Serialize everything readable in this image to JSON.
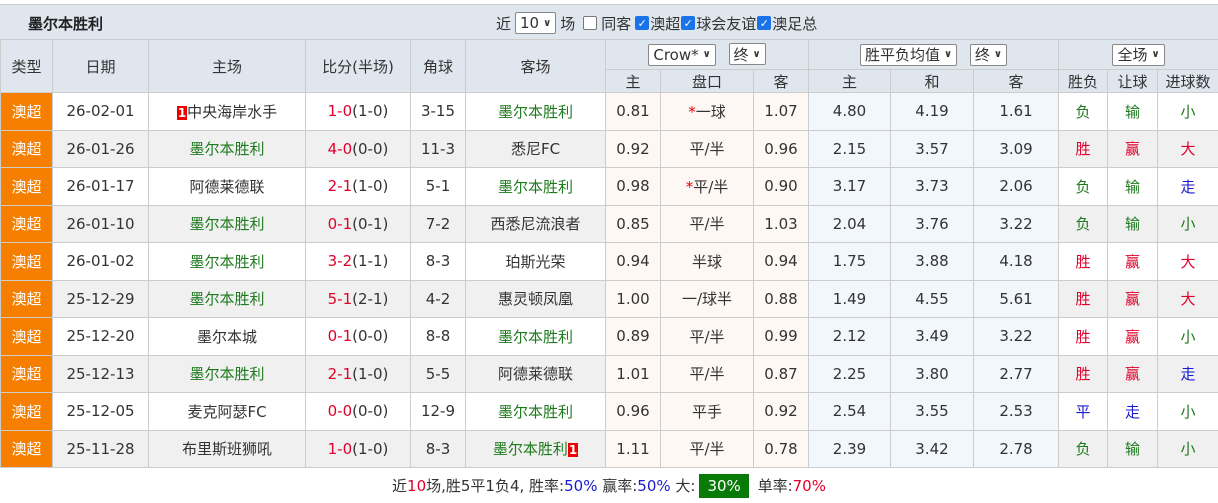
{
  "team": "墨尔本胜利",
  "filters": {
    "recent_label": "近",
    "recent_value": "10",
    "games_label": "场",
    "same_home_label": "同客",
    "same_home_checked": false,
    "leagues": [
      {
        "label": "澳超",
        "checked": true
      },
      {
        "label": "球会友谊",
        "checked": true
      },
      {
        "label": "澳足总",
        "checked": true
      }
    ]
  },
  "headers": {
    "type": "类型",
    "date": "日期",
    "home": "主场",
    "score": "比分(半场)",
    "corner": "角球",
    "away": "客场",
    "asian_company": "Crow*",
    "asian_stage": "终",
    "euro_company": "胜平负均值",
    "euro_stage": "终",
    "result_scope": "全场",
    "asian_home": "主",
    "asian_line": "盘口",
    "asian_away": "客",
    "euro_home": "主",
    "euro_draw": "和",
    "euro_away": "客",
    "res_wl": "胜负",
    "res_handicap": "让球",
    "res_goals": "进球数"
  },
  "rows": [
    {
      "type": "澳超",
      "date": "26-02-01",
      "home": "中央海岸水手",
      "home_rank": "1",
      "home_green": false,
      "away": "墨尔本胜利",
      "away_green": true,
      "score": "1-0",
      "half": "(1-0)",
      "corner": "3-15",
      "ah": "0.81",
      "line": "一球",
      "line_star": true,
      "aa": "1.07",
      "eh": "4.80",
      "ed": "4.19",
      "ea": "1.61",
      "wl": "负",
      "hc": "输",
      "goals": "小"
    },
    {
      "type": "澳超",
      "date": "26-01-26",
      "home": "墨尔本胜利",
      "home_green": true,
      "away": "悉尼FC",
      "away_green": false,
      "score": "4-0",
      "half": "(0-0)",
      "corner": "11-3",
      "ah": "0.92",
      "line": "平/半",
      "line_star": false,
      "aa": "0.96",
      "eh": "2.15",
      "ed": "3.57",
      "ea": "3.09",
      "wl": "胜",
      "hc": "赢",
      "goals": "大"
    },
    {
      "type": "澳超",
      "date": "26-01-17",
      "home": "阿德莱德联",
      "home_green": false,
      "away": "墨尔本胜利",
      "away_green": true,
      "score": "2-1",
      "half": "(1-0)",
      "corner": "5-1",
      "ah": "0.98",
      "line": "平/半",
      "line_star": true,
      "aa": "0.90",
      "eh": "3.17",
      "ed": "3.73",
      "ea": "2.06",
      "wl": "负",
      "hc": "输",
      "goals": "走"
    },
    {
      "type": "澳超",
      "date": "26-01-10",
      "home": "墨尔本胜利",
      "home_green": true,
      "away": "西悉尼流浪者",
      "away_green": false,
      "score": "0-1",
      "half": "(0-1)",
      "corner": "7-2",
      "ah": "0.85",
      "line": "平/半",
      "line_star": false,
      "aa": "1.03",
      "eh": "2.04",
      "ed": "3.76",
      "ea": "3.22",
      "wl": "负",
      "hc": "输",
      "goals": "小"
    },
    {
      "type": "澳超",
      "date": "26-01-02",
      "home": "墨尔本胜利",
      "home_green": true,
      "away": "珀斯光荣",
      "away_green": false,
      "score": "3-2",
      "half": "(1-1)",
      "corner": "8-3",
      "ah": "0.94",
      "line": "半球",
      "line_star": false,
      "aa": "0.94",
      "eh": "1.75",
      "ed": "3.88",
      "ea": "4.18",
      "wl": "胜",
      "hc": "赢",
      "goals": "大"
    },
    {
      "type": "澳超",
      "date": "25-12-29",
      "home": "墨尔本胜利",
      "home_green": true,
      "away": "惠灵顿凤凰",
      "away_green": false,
      "score": "5-1",
      "half": "(2-1)",
      "corner": "4-2",
      "ah": "1.00",
      "line": "一/球半",
      "line_star": false,
      "aa": "0.88",
      "eh": "1.49",
      "ed": "4.55",
      "ea": "5.61",
      "wl": "胜",
      "hc": "赢",
      "goals": "大"
    },
    {
      "type": "澳超",
      "date": "25-12-20",
      "home": "墨尔本城",
      "home_green": false,
      "away": "墨尔本胜利",
      "away_green": true,
      "score": "0-1",
      "half": "(0-0)",
      "corner": "8-8",
      "ah": "0.89",
      "line": "平/半",
      "line_star": false,
      "aa": "0.99",
      "eh": "2.12",
      "ed": "3.49",
      "ea": "3.22",
      "wl": "胜",
      "hc": "赢",
      "goals": "小"
    },
    {
      "type": "澳超",
      "date": "25-12-13",
      "home": "墨尔本胜利",
      "home_green": true,
      "away": "阿德莱德联",
      "away_green": false,
      "score": "2-1",
      "half": "(1-0)",
      "corner": "5-5",
      "ah": "1.01",
      "line": "平/半",
      "line_star": false,
      "aa": "0.87",
      "eh": "2.25",
      "ed": "3.80",
      "ea": "2.77",
      "wl": "胜",
      "hc": "赢",
      "goals": "走"
    },
    {
      "type": "澳超",
      "date": "25-12-05",
      "home": "麦克阿瑟FC",
      "home_green": false,
      "away": "墨尔本胜利",
      "away_green": true,
      "score": "0-0",
      "half": "(0-0)",
      "corner": "12-9",
      "ah": "0.96",
      "line": "平手",
      "line_star": false,
      "aa": "0.92",
      "eh": "2.54",
      "ed": "3.55",
      "ea": "2.53",
      "wl": "平",
      "hc": "走",
      "goals": "小"
    },
    {
      "type": "澳超",
      "date": "25-11-28",
      "home": "布里斯班狮吼",
      "home_green": false,
      "away": "墨尔本胜利",
      "away_rank": "1",
      "away_green": true,
      "score": "1-0",
      "half": "(1-0)",
      "corner": "8-3",
      "ah": "1.11",
      "line": "平/半",
      "line_star": false,
      "aa": "0.78",
      "eh": "2.39",
      "ed": "3.42",
      "ea": "2.78",
      "wl": "负",
      "hc": "输",
      "goals": "小"
    }
  ],
  "summary": {
    "p1": "近",
    "n": "10",
    "p2": "场,胜5平1负4, 胜率:",
    "win_rate": "50%",
    "p3": " 赢率:",
    "cover_rate": "50%",
    "p4": " 大:",
    "over_rate": "30%",
    "p5": " 单率:",
    "odd_rate": "70%"
  },
  "colors": {
    "type_bg": "#f77f00",
    "green": "#1e7a1e",
    "red": "#e0002a",
    "blue": "#1a1ad0",
    "header_bg": "#dfe6ee",
    "over_badge": "#087a08"
  }
}
